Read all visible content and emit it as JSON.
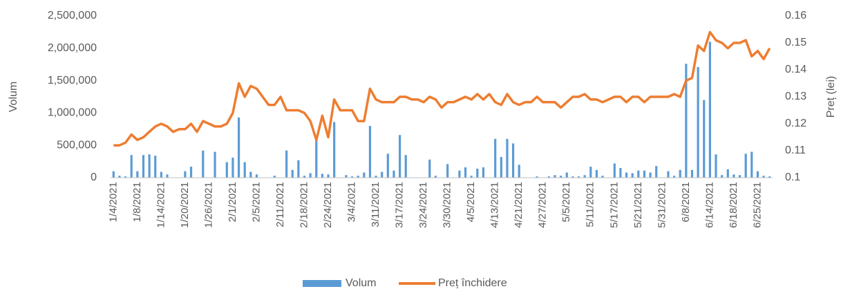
{
  "chart_data": {
    "type": "bar-line",
    "yaxis_label": "Volum",
    "y2axis_label": "Preț (lei)",
    "categories": [
      "1/4/2021",
      null,
      null,
      null,
      "1/8/2021",
      null,
      null,
      null,
      "1/14/2021",
      null,
      null,
      null,
      "1/20/2021",
      null,
      null,
      null,
      "1/26/2021",
      null,
      null,
      null,
      "2/1/2021",
      null,
      null,
      null,
      "2/5/2021",
      null,
      null,
      null,
      "2/11/2021",
      null,
      null,
      null,
      "2/18/2021",
      null,
      null,
      null,
      "2/24/2021",
      null,
      null,
      null,
      "3/4/2021",
      null,
      null,
      null,
      "3/11/2021",
      null,
      null,
      null,
      "3/17/2021",
      null,
      null,
      null,
      "3/24/2021",
      null,
      null,
      null,
      "3/30/2021",
      null,
      null,
      null,
      "4/5/2021",
      null,
      null,
      null,
      "4/13/2021",
      null,
      null,
      null,
      "4/21/2021",
      null,
      null,
      null,
      "4/27/2021",
      null,
      null,
      null,
      "5/5/2021",
      null,
      null,
      null,
      "5/11/2021",
      null,
      null,
      null,
      "5/17/2021",
      null,
      null,
      null,
      "5/21/2021",
      null,
      null,
      null,
      "5/31/2021",
      null,
      null,
      null,
      "6/8/2021",
      null,
      null,
      null,
      "6/14/2021",
      null,
      null,
      null,
      "6/18/2021",
      null,
      null,
      null,
      "6/25/2021",
      null,
      null
    ],
    "series": [
      {
        "name": "Volum",
        "type": "bar",
        "color": "#5b9bd5",
        "values": [
          100000,
          30000,
          20000,
          350000,
          100000,
          350000,
          360000,
          340000,
          90000,
          50000,
          0,
          0,
          100000,
          170000,
          0,
          420000,
          0,
          400000,
          0,
          240000,
          310000,
          930000,
          240000,
          90000,
          50000,
          0,
          0,
          30000,
          0,
          420000,
          120000,
          270000,
          30000,
          70000,
          600000,
          60000,
          50000,
          860000,
          0,
          40000,
          20000,
          30000,
          80000,
          800000,
          30000,
          90000,
          370000,
          110000,
          660000,
          350000,
          0,
          0,
          0,
          280000,
          30000,
          0,
          210000,
          0,
          110000,
          160000,
          30000,
          140000,
          160000,
          0,
          600000,
          320000,
          600000,
          530000,
          200000,
          0,
          0,
          20000,
          0,
          20000,
          40000,
          30000,
          80000,
          20000,
          20000,
          40000,
          170000,
          120000,
          30000,
          0,
          220000,
          150000,
          80000,
          70000,
          110000,
          110000,
          80000,
          180000,
          0,
          100000,
          30000,
          120000,
          1760000,
          120000,
          1710000,
          1200000,
          2100000,
          360000,
          40000,
          130000,
          50000,
          40000,
          370000,
          400000,
          100000,
          30000,
          20000
        ]
      },
      {
        "name": "Preț închidere",
        "type": "line",
        "axis": "y2",
        "color": "#ed7d31",
        "values": [
          0.112,
          0.112,
          0.113,
          0.116,
          0.114,
          0.115,
          0.117,
          0.119,
          0.12,
          0.119,
          0.117,
          0.118,
          0.118,
          0.12,
          0.117,
          0.121,
          0.12,
          0.119,
          0.119,
          0.12,
          0.124,
          0.135,
          0.13,
          0.134,
          0.133,
          0.13,
          0.127,
          0.127,
          0.13,
          0.125,
          0.125,
          0.125,
          0.124,
          0.121,
          0.114,
          0.123,
          0.115,
          0.129,
          0.125,
          0.125,
          0.125,
          0.121,
          0.121,
          0.133,
          0.129,
          0.128,
          0.128,
          0.128,
          0.13,
          0.13,
          0.129,
          0.129,
          0.128,
          0.13,
          0.129,
          0.126,
          0.128,
          0.128,
          0.129,
          0.13,
          0.129,
          0.131,
          0.129,
          0.131,
          0.128,
          0.127,
          0.131,
          0.128,
          0.127,
          0.128,
          0.128,
          0.13,
          0.128,
          0.128,
          0.128,
          0.126,
          0.128,
          0.13,
          0.13,
          0.131,
          0.129,
          0.129,
          0.128,
          0.129,
          0.13,
          0.13,
          0.128,
          0.13,
          0.13,
          0.128,
          0.13,
          0.13,
          0.13,
          0.13,
          0.131,
          0.13,
          0.136,
          0.137,
          0.149,
          0.147,
          0.154,
          0.151,
          0.15,
          0.148,
          0.15,
          0.15,
          0.151,
          0.145,
          0.147,
          0.144,
          0.148
        ]
      }
    ],
    "ylim": [
      0,
      2500000
    ],
    "yticks": [
      0,
      {
        "value": 500000,
        "label": "500,000"
      },
      {
        "value": 1000000,
        "label": "1,000,000"
      },
      {
        "value": 1500000,
        "label": "1,500,000"
      },
      {
        "value": 2000000,
        "label": "2,000,000"
      },
      {
        "value": 2500000,
        "label": "2,500,000"
      }
    ],
    "y2lim": [
      0.1,
      0.16
    ],
    "y2ticks": [
      0.1,
      0.11,
      0.12,
      0.13,
      0.14,
      0.15,
      0.16
    ],
    "legend": "bottom"
  }
}
